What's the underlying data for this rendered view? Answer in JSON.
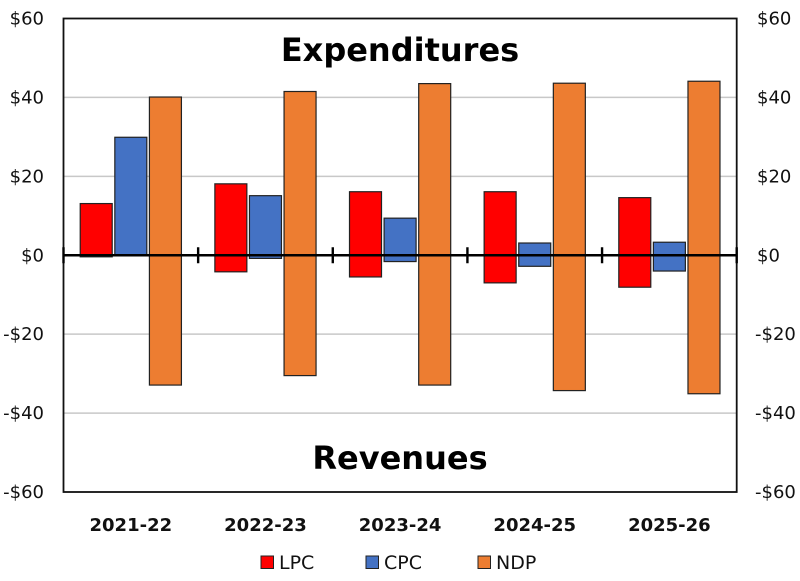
{
  "chart_data": {
    "type": "bar",
    "title": "",
    "xlabel": "",
    "ylabel": "",
    "ylim": [
      -60,
      60
    ],
    "yticks": [
      60,
      40,
      20,
      0,
      -20,
      -40,
      -60
    ],
    "ytick_labels": [
      "$60",
      "$40",
      "$20",
      "$0",
      "-$20",
      "-$40",
      "-$60"
    ],
    "secondary_y_axis": true,
    "grid": true,
    "legend_position": "bottom-center",
    "categories": [
      "2021-22",
      "2022-23",
      "2023-24",
      "2024-25",
      "2025-26"
    ],
    "annotations": {
      "top": "Expenditures",
      "bottom": "Revenues"
    },
    "series": [
      {
        "name": "LPC",
        "color": "#FF0000",
        "expenditures": [
          13.1,
          18.1,
          16.1,
          16.1,
          14.6
        ],
        "revenues": [
          -0.4,
          -4.2,
          -5.5,
          -7.0,
          -8.1
        ]
      },
      {
        "name": "CPC",
        "color": "#4472C4",
        "expenditures": [
          29.9,
          15.1,
          9.4,
          3.1,
          3.3
        ],
        "revenues": [
          0.0,
          -0.8,
          -1.6,
          -2.8,
          -4.0
        ]
      },
      {
        "name": "NDP",
        "color": "#ED7D31",
        "expenditures": [
          40.1,
          41.5,
          43.5,
          43.6,
          44.1
        ],
        "revenues": [
          -32.9,
          -30.5,
          -32.9,
          -34.3,
          -35.1
        ]
      }
    ]
  }
}
